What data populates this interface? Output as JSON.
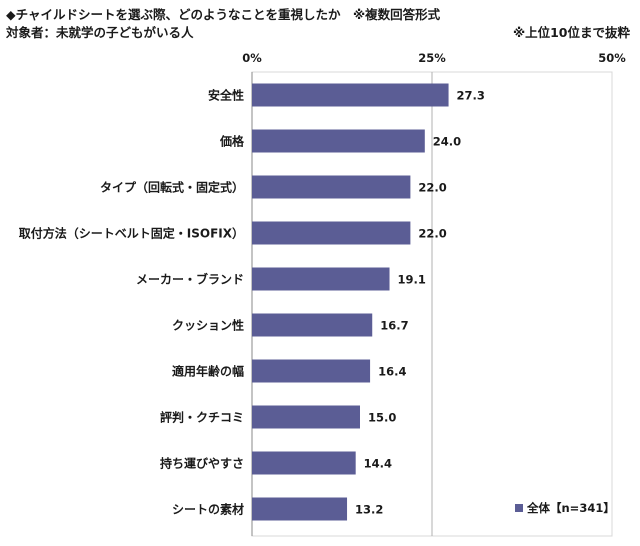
{
  "header": {
    "title": "◆チャイルドシートを選ぶ際、どのようなことを重視したか　※複数回答形式",
    "target": "対象者：未就学の子どもがいる人",
    "note": "※上位10位まで抜粋"
  },
  "chart_data": {
    "type": "bar",
    "orientation": "horizontal",
    "categories": [
      "安全性",
      "価格",
      "タイプ（回転式・固定式）",
      "取付方法（シートベルト固定・ISOFIX）",
      "メーカー・ブランド",
      "クッション性",
      "適用年齢の幅",
      "評判・クチコミ",
      "持ち運びやすさ",
      "シートの素材"
    ],
    "series": [
      {
        "name": "全体【n=341】",
        "values": [
          27.3,
          24.0,
          22.0,
          22.0,
          19.1,
          16.7,
          16.4,
          15.0,
          14.4,
          13.2
        ],
        "value_labels": [
          "27.3",
          "24.0",
          "22.0",
          "22.0",
          "19.1",
          "16.7",
          "16.4",
          "15.0",
          "14.4",
          "13.2"
        ]
      }
    ],
    "xlim": [
      0,
      50
    ],
    "ticks": [
      0,
      25,
      50
    ],
    "tick_labels": [
      "0%",
      "25%",
      "50%"
    ],
    "gridlines": [
      25
    ],
    "legend_position": "bottom-right",
    "colors": {
      "bar": "#5b5d95",
      "grid": "#b0b0b0",
      "axis": "#8a8a8a"
    }
  }
}
